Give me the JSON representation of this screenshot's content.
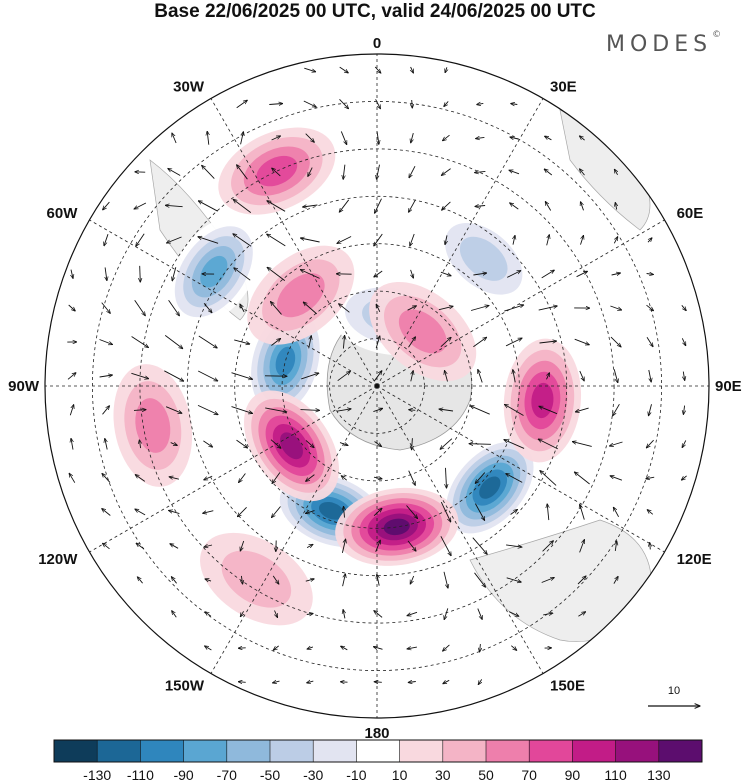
{
  "title": "Base 22/06/2025 00 UTC, valid 24/06/2025 00 UTC",
  "brand": "MODES",
  "brand_mark": "©",
  "longitude_labels": [
    {
      "text": "0",
      "lon": 0
    },
    {
      "text": "30E",
      "lon": 30
    },
    {
      "text": "60E",
      "lon": 60
    },
    {
      "text": "90E",
      "lon": 90
    },
    {
      "text": "120E",
      "lon": 120
    },
    {
      "text": "150E",
      "lon": 150
    },
    {
      "text": "180",
      "lon": 180
    },
    {
      "text": "150W",
      "lon": -150
    },
    {
      "text": "120W",
      "lon": -120
    },
    {
      "text": "90W",
      "lon": -90
    },
    {
      "text": "60W",
      "lon": -60
    },
    {
      "text": "30W",
      "lon": -30
    }
  ],
  "vector_reference": {
    "label": "10",
    "value": 10
  },
  "colorbar": {
    "colors": [
      "#0e3c5a",
      "#1c6796",
      "#2f86bd",
      "#5aa6d2",
      "#8fb9dc",
      "#bccde6",
      "#e2e4f1",
      "#ffffff",
      "#f9d9df",
      "#f4b4c6",
      "#ee7fac",
      "#e2479a",
      "#c21c87",
      "#97117c",
      "#5c0d6e"
    ],
    "tick_labels": [
      "-130",
      "-110",
      "-90",
      "-70",
      "-50",
      "-30",
      "-10",
      "10",
      "30",
      "50",
      "70",
      "90",
      "110",
      "130"
    ]
  },
  "anomaly_centers": [
    {
      "name": "blue-center-75w",
      "lon": -75,
      "lat": -70,
      "value": -110
    },
    {
      "name": "blue-center-55w",
      "lon": -55,
      "lat": -48,
      "value": -90
    },
    {
      "name": "blue-center-160w",
      "lon": -160,
      "lat": -62,
      "value": -130
    },
    {
      "name": "blue-center-130e",
      "lon": 132,
      "lat": -58,
      "value": -130
    },
    {
      "name": "blue-center-40e",
      "lon": 40,
      "lat": -55,
      "value": -50
    },
    {
      "name": "blue-center-10e",
      "lon": 10,
      "lat": -75,
      "value": -50
    },
    {
      "name": "pink-center-125w",
      "lon": -125,
      "lat": -68,
      "value": 110
    },
    {
      "name": "pink-center-175e",
      "lon": 172,
      "lat": -60,
      "value": 130
    },
    {
      "name": "pink-center-95e",
      "lon": 95,
      "lat": -55,
      "value": 90
    },
    {
      "name": "pink-center-25w",
      "lon": -25,
      "lat": -40,
      "value": 70
    },
    {
      "name": "pink-center-30w",
      "lon": -40,
      "lat": -65,
      "value": 50
    },
    {
      "name": "pink-center-35e",
      "lon": 40,
      "lat": -75,
      "value": 50
    },
    {
      "name": "pink-center-95w",
      "lon": -100,
      "lat": -42,
      "value": 50
    },
    {
      "name": "pink-center-150w",
      "lon": -148,
      "lat": -42,
      "value": 30
    }
  ]
}
